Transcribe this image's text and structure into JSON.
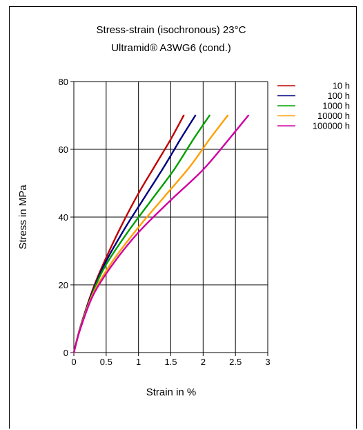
{
  "chart_data": {
    "type": "line",
    "title": "Stress-strain (isochronous) 23°C",
    "subtitle": "Ultramid® A3WG6 (cond.)",
    "xlabel": "Strain in %",
    "ylabel": "Stress in MPa",
    "xlim": [
      0,
      3
    ],
    "ylim": [
      0,
      80
    ],
    "xticks": [
      "0",
      "0.5",
      "1",
      "1.5",
      "2",
      "2.5",
      "3"
    ],
    "yticks": [
      "0",
      "20",
      "40",
      "60",
      "80"
    ],
    "grid": true,
    "legend_position": "top-right (outside plot)",
    "series": [
      {
        "name": "10 h",
        "color": "#c00000",
        "x": [
          0,
          0.1,
          0.3,
          0.5,
          0.75,
          1.0,
          1.25,
          1.5,
          1.7
        ],
        "y": [
          0,
          7.5,
          19,
          28,
          38,
          47,
          55,
          63,
          70
        ]
      },
      {
        "name": "100 h",
        "color": "#000080",
        "x": [
          0,
          0.1,
          0.3,
          0.5,
          0.8,
          1.1,
          1.4,
          1.65,
          1.88
        ],
        "y": [
          0,
          7.5,
          18.5,
          27,
          37,
          46,
          55,
          63,
          70
        ]
      },
      {
        "name": "1000 h",
        "color": "#00a000",
        "x": [
          0,
          0.1,
          0.3,
          0.5,
          0.85,
          1.2,
          1.55,
          1.85,
          2.1
        ],
        "y": [
          0,
          7.3,
          18,
          26,
          36,
          45,
          54,
          63,
          70
        ]
      },
      {
        "name": "10000 h",
        "color": "#ffa000",
        "x": [
          0,
          0.1,
          0.3,
          0.6,
          1.0,
          1.4,
          1.8,
          2.1,
          2.38
        ],
        "y": [
          0,
          7.2,
          17.5,
          27,
          37,
          46,
          55,
          63,
          70
        ]
      },
      {
        "name": "100000 h",
        "color": "#d000a0",
        "x": [
          0,
          0.1,
          0.3,
          0.6,
          1.0,
          1.5,
          2.0,
          2.4,
          2.7
        ],
        "y": [
          0,
          7,
          17,
          26,
          35.5,
          45,
          54,
          63,
          70
        ]
      }
    ]
  }
}
